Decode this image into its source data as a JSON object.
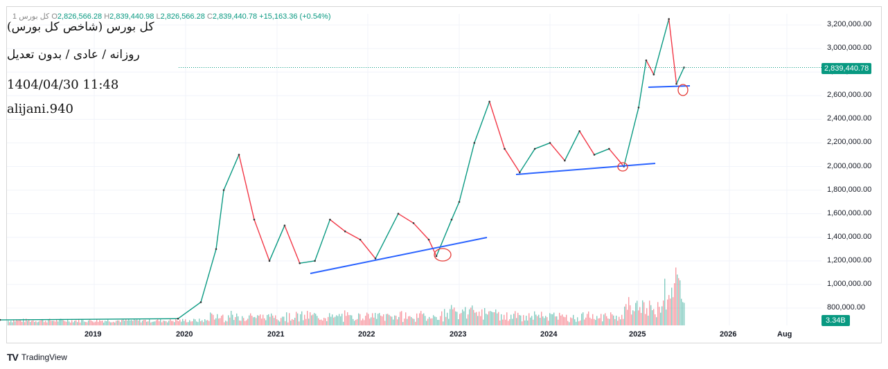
{
  "header": {
    "symbol_prefix": "1  کل بورس",
    "open_label": "O",
    "open_value": "2,826,566.28",
    "high_label": "H",
    "high_value": "2,839,440.98",
    "low_label": "L",
    "low_value": "2,826,566.28",
    "close_label": "C",
    "close_value": "2,839,440.78",
    "change": "+15,163.36 (+0.54%)"
  },
  "watermark": {
    "line1": "کل بورس (شاخص کل بورس)",
    "line2": "روزانه / عادی / بدون تعدیل",
    "line3": "1404/04/30 11:48",
    "line4": "alijani.940"
  },
  "price_badge": "2,839,440.78",
  "volume_badge": "3.34B",
  "branding": "TradingView",
  "colors": {
    "up": "#089981",
    "down": "#f23645",
    "trend": "#2962ff",
    "annotation": "#e53935",
    "grid": "#f0f3fa"
  },
  "chart_data": {
    "type": "line",
    "title": "کل بورس (شاخص کل بورس)",
    "x_ticks": [
      "2019",
      "2020",
      "2021",
      "2022",
      "2023",
      "2024",
      "2025",
      "2026",
      "Aug"
    ],
    "y_ticks": [
      "3,200,000.00",
      "3,000,000.00",
      "2,800,000.00",
      "2,600,000.00",
      "2,400,000.00",
      "2,200,000.00",
      "2,000,000.00",
      "1,800,000.00",
      "1,600,000.00",
      "1,400,000.00",
      "1,200,000.00",
      "1,000,000.00",
      "800,000.00"
    ],
    "ylim": [
      700000,
      3300000
    ],
    "last_price": 2839440.78,
    "series": [
      {
        "values": [
          {
            "x": "2018-10",
            "y": 700000
          },
          {
            "x": "2019-12",
            "y": 710000
          },
          {
            "x": "2020-03",
            "y": 850000
          },
          {
            "x": "2020-05",
            "y": 1300000
          },
          {
            "x": "2020-06",
            "y": 1800000
          },
          {
            "x": "2020-08",
            "y": 2100000
          },
          {
            "x": "2020-10",
            "y": 1550000
          },
          {
            "x": "2020-12",
            "y": 1200000
          },
          {
            "x": "2021-02",
            "y": 1500000
          },
          {
            "x": "2021-04",
            "y": 1180000
          },
          {
            "x": "2021-06",
            "y": 1200000
          },
          {
            "x": "2021-08",
            "y": 1550000
          },
          {
            "x": "2021-10",
            "y": 1450000
          },
          {
            "x": "2021-12",
            "y": 1380000
          },
          {
            "x": "2022-02",
            "y": 1220000
          },
          {
            "x": "2022-05",
            "y": 1600000
          },
          {
            "x": "2022-07",
            "y": 1520000
          },
          {
            "x": "2022-09",
            "y": 1380000
          },
          {
            "x": "2022-10",
            "y": 1240000
          },
          {
            "x": "2022-12",
            "y": 1550000
          },
          {
            "x": "2023-01",
            "y": 1700000
          },
          {
            "x": "2023-03",
            "y": 2200000
          },
          {
            "x": "2023-05",
            "y": 2550000
          },
          {
            "x": "2023-07",
            "y": 2150000
          },
          {
            "x": "2023-09",
            "y": 1950000
          },
          {
            "x": "2023-11",
            "y": 2150000
          },
          {
            "x": "2024-01",
            "y": 2200000
          },
          {
            "x": "2024-03",
            "y": 2050000
          },
          {
            "x": "2024-05",
            "y": 2300000
          },
          {
            "x": "2024-07",
            "y": 2100000
          },
          {
            "x": "2024-09",
            "y": 2150000
          },
          {
            "x": "2024-11",
            "y": 2000000
          },
          {
            "x": "2025-01",
            "y": 2500000
          },
          {
            "x": "2025-02",
            "y": 2900000
          },
          {
            "x": "2025-03",
            "y": 2780000
          },
          {
            "x": "2025-05",
            "y": 3250000
          },
          {
            "x": "2025-06",
            "y": 2700000
          },
          {
            "x": "2025-07",
            "y": 2839440
          }
        ]
      }
    ]
  }
}
